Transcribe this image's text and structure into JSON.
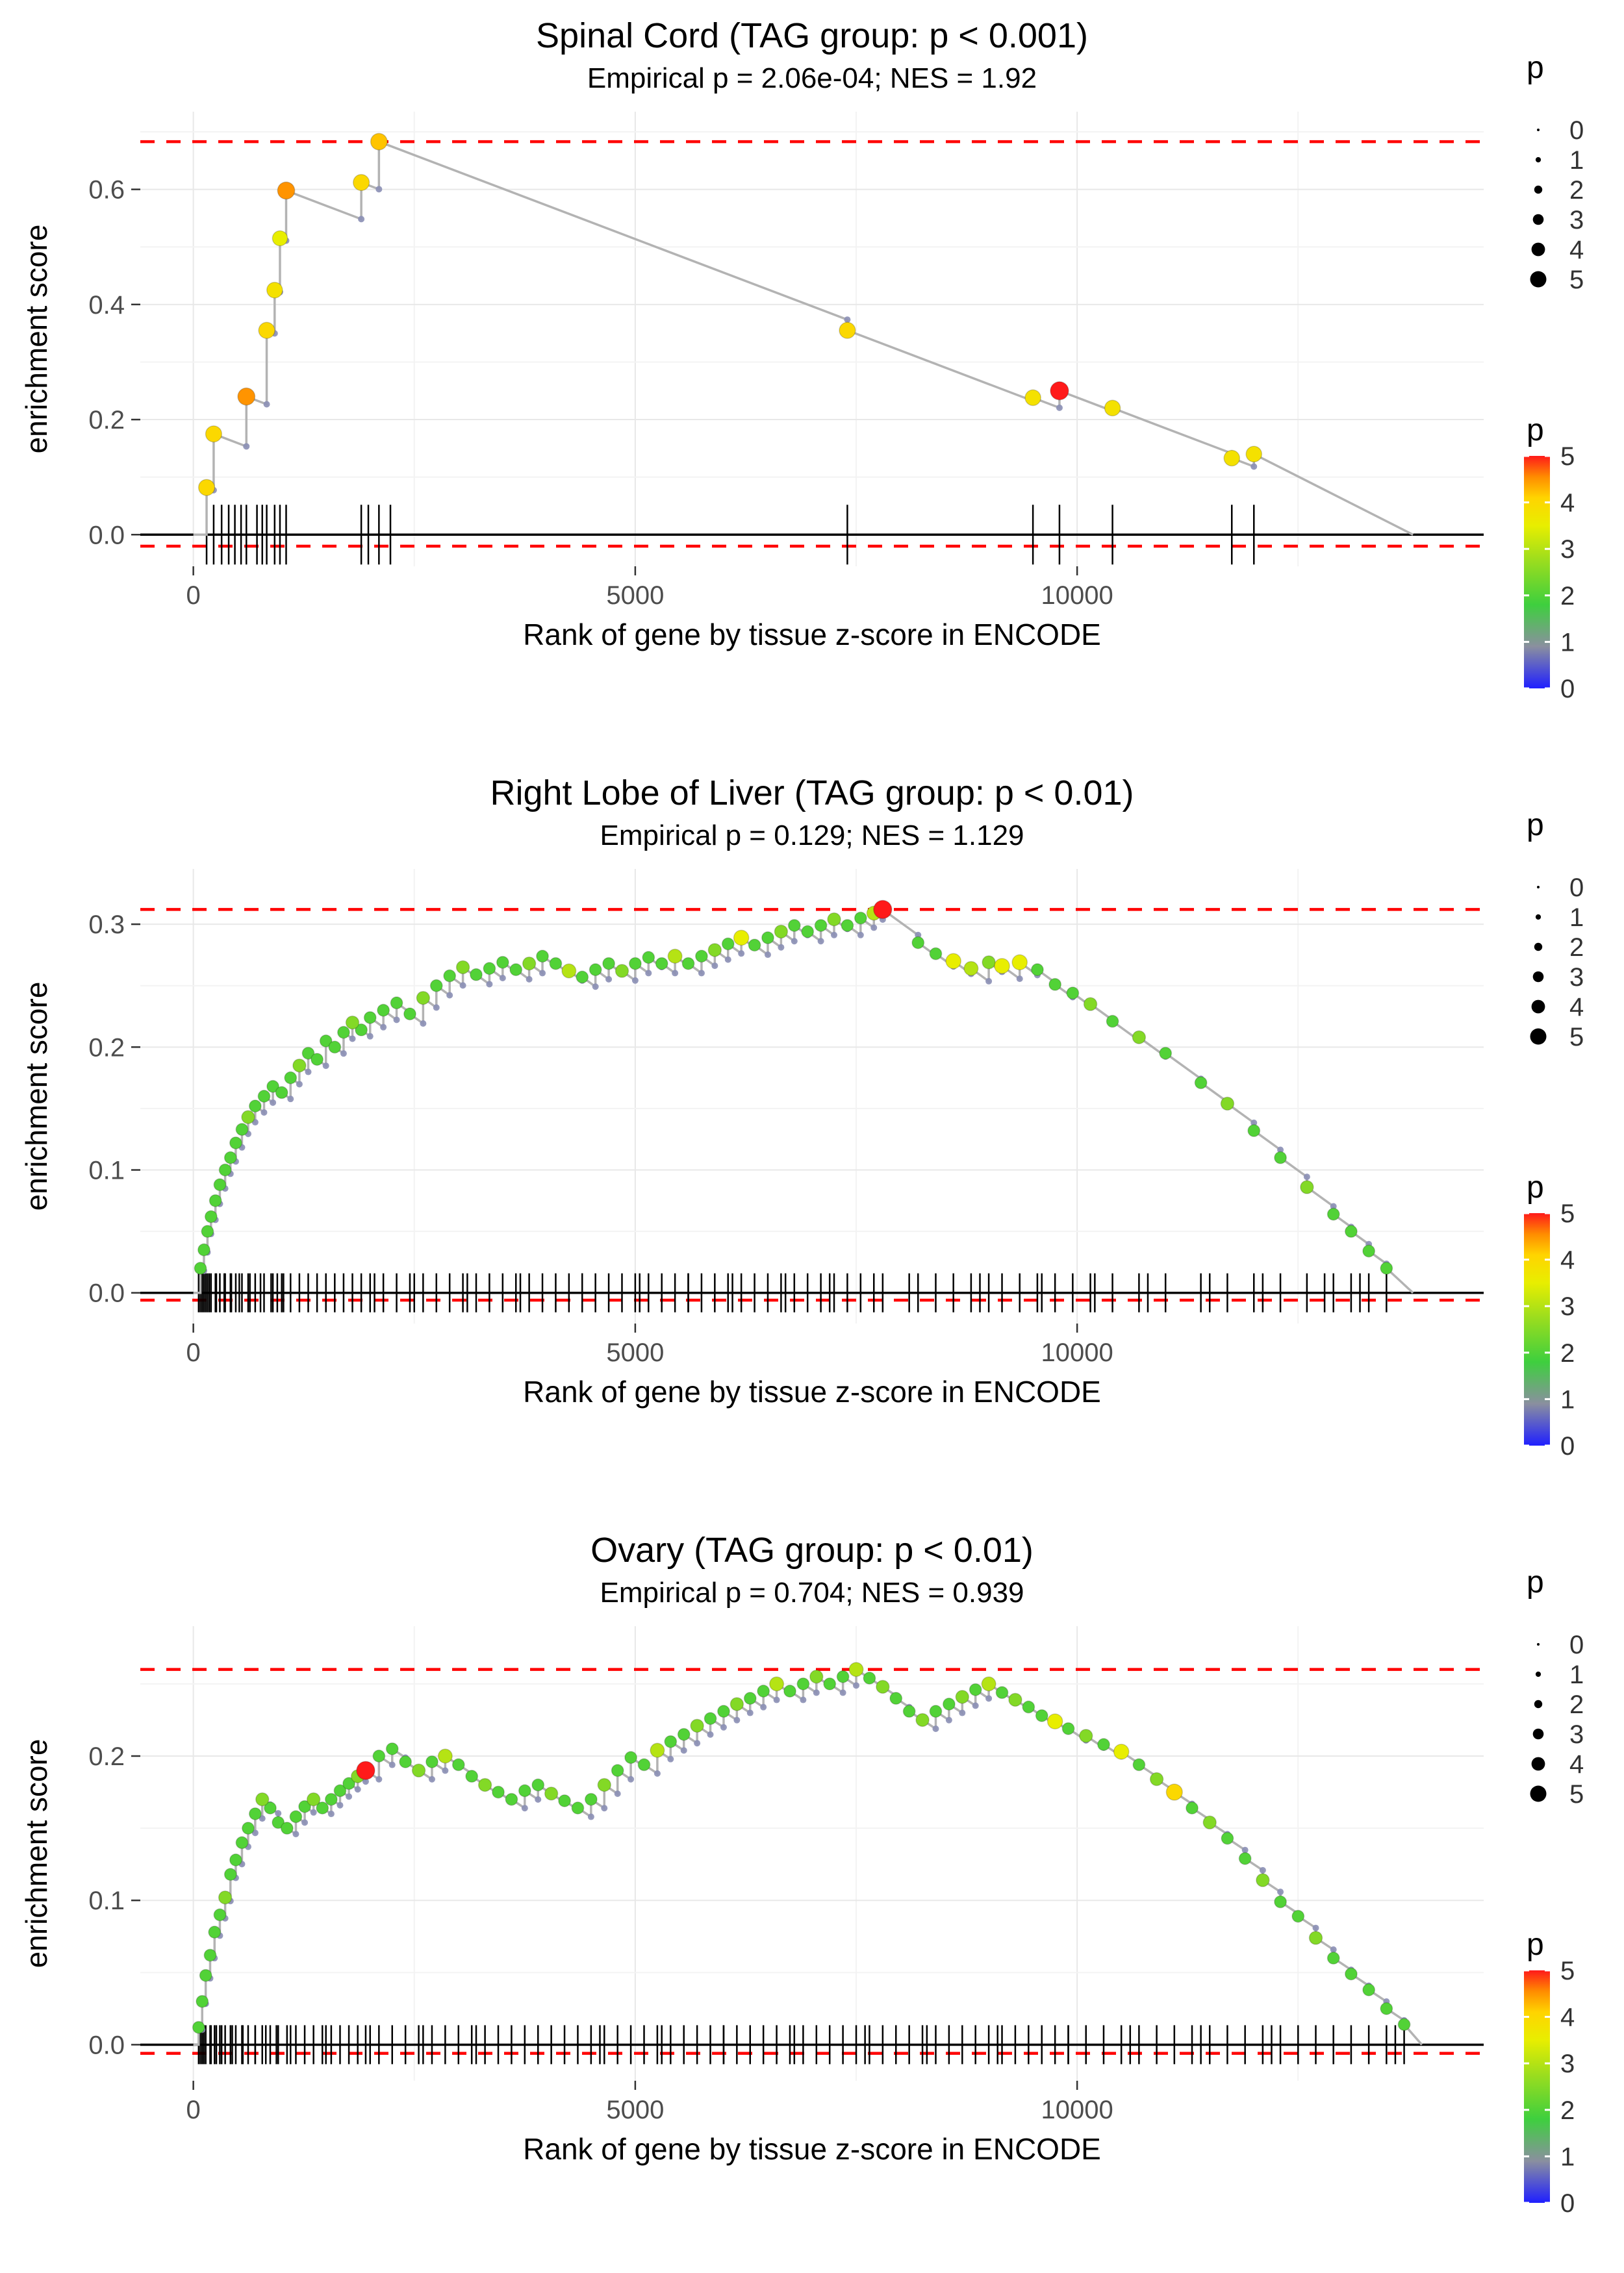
{
  "chart_data": [
    {
      "type": "line",
      "title": "Spinal Cord (TAG group: p < 0.001)",
      "subtitle": "Empirical p = 2.06e-04; NES = 1.92",
      "xlabel": "Rank of gene by tissue z-score in ENCODE",
      "ylabel": "enrichment score",
      "x_ticks": [
        0,
        5000,
        10000
      ],
      "y_ticks": [
        0,
        0.2,
        0.4,
        0.6
      ],
      "y_tick_labels": [
        "0.0",
        "0.2",
        "0.4",
        "0.6"
      ],
      "xlim": [
        -600,
        14600
      ],
      "ylim": [
        -0.055,
        0.735
      ],
      "hline_top": 0.683,
      "hline_bottom": -0.02,
      "x_end": 13800,
      "rug_half": 46,
      "points": [
        [
          150,
          0.082,
          4
        ],
        [
          230,
          0.175,
          4
        ],
        [
          600,
          0.24,
          4.5
        ],
        [
          830,
          0.355,
          4
        ],
        [
          920,
          0.425,
          3.8
        ],
        [
          980,
          0.515,
          3.5
        ],
        [
          1050,
          0.598,
          4.5
        ],
        [
          1900,
          0.612,
          4
        ],
        [
          2100,
          0.683,
          4.2
        ],
        [
          7400,
          0.355,
          4
        ],
        [
          9500,
          0.238,
          3.8
        ],
        [
          9800,
          0.25,
          5
        ],
        [
          10400,
          0.22,
          3.8
        ],
        [
          11750,
          0.133,
          3.8
        ],
        [
          12000,
          0.14,
          3.8
        ]
      ],
      "extra_rug": [
        320,
        400,
        470,
        540,
        720,
        780,
        1980,
        2230
      ]
    },
    {
      "type": "line",
      "title": "Right Lobe of Liver (TAG group: p < 0.01)",
      "subtitle": "Empirical p = 0.129; NES = 1.129",
      "xlabel": "Rank of gene by tissue z-score in ENCODE",
      "ylabel": "enrichment score",
      "x_ticks": [
        0,
        5000,
        10000
      ],
      "y_ticks": [
        0,
        0.1,
        0.2,
        0.3
      ],
      "y_tick_labels": [
        "0.0",
        "0.1",
        "0.2",
        "0.3"
      ],
      "xlim": [
        -600,
        14600
      ],
      "ylim": [
        -0.025,
        0.345
      ],
      "hline_top": 0.312,
      "hline_bottom": -0.006,
      "x_end": 13800,
      "rug_half": 30,
      "points": [
        [
          80,
          0.02,
          2
        ],
        [
          120,
          0.035,
          2
        ],
        [
          160,
          0.05,
          2
        ],
        [
          200,
          0.062,
          2
        ],
        [
          250,
          0.075,
          2
        ],
        [
          300,
          0.088,
          2
        ],
        [
          360,
          0.1,
          2
        ],
        [
          420,
          0.11,
          2
        ],
        [
          480,
          0.122,
          2
        ],
        [
          550,
          0.133,
          2
        ],
        [
          620,
          0.143,
          2.5
        ],
        [
          700,
          0.152,
          2
        ],
        [
          800,
          0.16,
          2
        ],
        [
          900,
          0.168,
          2
        ],
        [
          1000,
          0.163,
          2
        ],
        [
          1100,
          0.175,
          2
        ],
        [
          1200,
          0.185,
          2.5
        ],
        [
          1300,
          0.195,
          2
        ],
        [
          1400,
          0.19,
          2
        ],
        [
          1500,
          0.205,
          2
        ],
        [
          1600,
          0.2,
          2
        ],
        [
          1700,
          0.212,
          2
        ],
        [
          1800,
          0.22,
          2.5
        ],
        [
          1900,
          0.214,
          2
        ],
        [
          2000,
          0.224,
          2
        ],
        [
          2150,
          0.23,
          2
        ],
        [
          2300,
          0.236,
          2
        ],
        [
          2450,
          0.227,
          2
        ],
        [
          2600,
          0.24,
          2.5
        ],
        [
          2750,
          0.25,
          2
        ],
        [
          2900,
          0.258,
          2
        ],
        [
          3050,
          0.265,
          2.5
        ],
        [
          3200,
          0.259,
          2
        ],
        [
          3350,
          0.264,
          2
        ],
        [
          3500,
          0.269,
          2
        ],
        [
          3650,
          0.263,
          2
        ],
        [
          3800,
          0.268,
          2.5
        ],
        [
          3950,
          0.274,
          2
        ],
        [
          4100,
          0.268,
          2
        ],
        [
          4250,
          0.262,
          3
        ],
        [
          4400,
          0.257,
          2
        ],
        [
          4550,
          0.263,
          2
        ],
        [
          4700,
          0.268,
          2
        ],
        [
          4850,
          0.262,
          2.5
        ],
        [
          5000,
          0.268,
          2
        ],
        [
          5150,
          0.273,
          2
        ],
        [
          5300,
          0.268,
          2
        ],
        [
          5450,
          0.274,
          3
        ],
        [
          5600,
          0.268,
          2
        ],
        [
          5750,
          0.274,
          2
        ],
        [
          5900,
          0.279,
          2.5
        ],
        [
          6050,
          0.284,
          2
        ],
        [
          6200,
          0.289,
          3.5
        ],
        [
          6350,
          0.283,
          2
        ],
        [
          6500,
          0.289,
          2
        ],
        [
          6650,
          0.294,
          2.5
        ],
        [
          6800,
          0.299,
          2
        ],
        [
          6950,
          0.294,
          2
        ],
        [
          7100,
          0.299,
          2
        ],
        [
          7250,
          0.304,
          2.5
        ],
        [
          7400,
          0.299,
          2
        ],
        [
          7550,
          0.305,
          2
        ],
        [
          7700,
          0.309,
          3
        ],
        [
          7800,
          0.312,
          5
        ],
        [
          8200,
          0.285,
          2
        ],
        [
          8400,
          0.276,
          2
        ],
        [
          8600,
          0.27,
          3.5
        ],
        [
          8800,
          0.264,
          3
        ],
        [
          9000,
          0.269,
          2.5
        ],
        [
          9150,
          0.266,
          3.5
        ],
        [
          9350,
          0.269,
          3.5
        ],
        [
          9550,
          0.263,
          2
        ],
        [
          9750,
          0.251,
          2
        ],
        [
          9950,
          0.244,
          2
        ],
        [
          10150,
          0.235,
          2.5
        ],
        [
          10400,
          0.221,
          2
        ],
        [
          10700,
          0.208,
          2.5
        ],
        [
          11000,
          0.195,
          2
        ],
        [
          11400,
          0.171,
          2
        ],
        [
          11700,
          0.154,
          2.5
        ],
        [
          12000,
          0.132,
          2
        ],
        [
          12300,
          0.11,
          2
        ],
        [
          12600,
          0.086,
          2.5
        ],
        [
          12900,
          0.064,
          2
        ],
        [
          13100,
          0.05,
          2
        ],
        [
          13300,
          0.034,
          2
        ],
        [
          13500,
          0.02,
          2
        ]
      ],
      "extra_rug": [
        60,
        100,
        140,
        180,
        260,
        350,
        430,
        520,
        640,
        760,
        880,
        950,
        1020,
        2050,
        2500,
        3100,
        3700,
        4400,
        5050,
        5600,
        6100,
        6700,
        7200,
        8100,
        8900,
        9600,
        10200,
        10800,
        11500,
        12100,
        12800,
        13200
      ]
    },
    {
      "type": "line",
      "title": "Ovary (TAG group: p < 0.01)",
      "subtitle": "Empirical p = 0.704; NES = 0.939",
      "xlabel": "Rank of gene by tissue z-score in ENCODE",
      "ylabel": "enrichment score",
      "x_ticks": [
        0,
        5000,
        10000
      ],
      "y_ticks": [
        0,
        0.1,
        0.2
      ],
      "y_tick_labels": [
        "0.0",
        "0.1",
        "0.2"
      ],
      "xlim": [
        -600,
        14600
      ],
      "ylim": [
        -0.025,
        0.29
      ],
      "hline_top": 0.26,
      "hline_bottom": -0.006,
      "x_end": 13900,
      "rug_half": 30,
      "points": [
        [
          60,
          0.012,
          2
        ],
        [
          100,
          0.03,
          2
        ],
        [
          140,
          0.048,
          2
        ],
        [
          190,
          0.062,
          2
        ],
        [
          240,
          0.078,
          2
        ],
        [
          300,
          0.09,
          2
        ],
        [
          360,
          0.102,
          2.5
        ],
        [
          420,
          0.118,
          2
        ],
        [
          480,
          0.128,
          2
        ],
        [
          550,
          0.14,
          2
        ],
        [
          620,
          0.15,
          2
        ],
        [
          700,
          0.16,
          2
        ],
        [
          780,
          0.17,
          2.5
        ],
        [
          870,
          0.164,
          2
        ],
        [
          960,
          0.154,
          2
        ],
        [
          1060,
          0.15,
          2
        ],
        [
          1160,
          0.158,
          2
        ],
        [
          1260,
          0.165,
          2
        ],
        [
          1360,
          0.17,
          2.5
        ],
        [
          1460,
          0.164,
          2
        ],
        [
          1560,
          0.17,
          2
        ],
        [
          1660,
          0.176,
          2
        ],
        [
          1760,
          0.181,
          2
        ],
        [
          1860,
          0.186,
          2.5
        ],
        [
          1950,
          0.19,
          5
        ],
        [
          2100,
          0.2,
          2
        ],
        [
          2250,
          0.205,
          2
        ],
        [
          2400,
          0.196,
          2
        ],
        [
          2550,
          0.19,
          2.5
        ],
        [
          2700,
          0.196,
          2
        ],
        [
          2850,
          0.2,
          3
        ],
        [
          3000,
          0.194,
          2
        ],
        [
          3150,
          0.186,
          2
        ],
        [
          3300,
          0.18,
          2.5
        ],
        [
          3450,
          0.175,
          2
        ],
        [
          3600,
          0.17,
          2
        ],
        [
          3750,
          0.176,
          2
        ],
        [
          3900,
          0.18,
          2
        ],
        [
          4050,
          0.174,
          2.5
        ],
        [
          4200,
          0.169,
          2
        ],
        [
          4350,
          0.164,
          2
        ],
        [
          4500,
          0.17,
          2
        ],
        [
          4650,
          0.18,
          2.5
        ],
        [
          4800,
          0.19,
          2
        ],
        [
          4950,
          0.199,
          2
        ],
        [
          5100,
          0.194,
          2
        ],
        [
          5250,
          0.204,
          3
        ],
        [
          5400,
          0.21,
          2
        ],
        [
          5550,
          0.215,
          2
        ],
        [
          5700,
          0.221,
          2.5
        ],
        [
          5850,
          0.226,
          2
        ],
        [
          6000,
          0.231,
          2
        ],
        [
          6150,
          0.236,
          2.5
        ],
        [
          6300,
          0.24,
          2
        ],
        [
          6450,
          0.245,
          2
        ],
        [
          6600,
          0.25,
          3
        ],
        [
          6750,
          0.245,
          2
        ],
        [
          6900,
          0.25,
          2
        ],
        [
          7050,
          0.255,
          2.5
        ],
        [
          7200,
          0.25,
          2
        ],
        [
          7350,
          0.255,
          2
        ],
        [
          7500,
          0.26,
          3
        ],
        [
          7650,
          0.254,
          2
        ],
        [
          7800,
          0.248,
          2.5
        ],
        [
          7950,
          0.24,
          2
        ],
        [
          8100,
          0.231,
          2
        ],
        [
          8250,
          0.225,
          2.5
        ],
        [
          8400,
          0.231,
          2
        ],
        [
          8550,
          0.236,
          2
        ],
        [
          8700,
          0.241,
          2.5
        ],
        [
          8850,
          0.246,
          2
        ],
        [
          9000,
          0.25,
          3
        ],
        [
          9150,
          0.244,
          2
        ],
        [
          9300,
          0.239,
          2.5
        ],
        [
          9450,
          0.234,
          2
        ],
        [
          9600,
          0.228,
          2
        ],
        [
          9750,
          0.224,
          3.5
        ],
        [
          9900,
          0.219,
          2
        ],
        [
          10100,
          0.214,
          2.5
        ],
        [
          10300,
          0.208,
          2
        ],
        [
          10500,
          0.203,
          3.5
        ],
        [
          10700,
          0.194,
          2
        ],
        [
          10900,
          0.184,
          2.5
        ],
        [
          11100,
          0.175,
          4
        ],
        [
          11300,
          0.164,
          2
        ],
        [
          11500,
          0.154,
          2.5
        ],
        [
          11700,
          0.143,
          2
        ],
        [
          11900,
          0.129,
          2
        ],
        [
          12100,
          0.114,
          2.5
        ],
        [
          12300,
          0.099,
          2
        ],
        [
          12500,
          0.089,
          2
        ],
        [
          12700,
          0.074,
          2.5
        ],
        [
          12900,
          0.06,
          2
        ],
        [
          13100,
          0.049,
          2
        ],
        [
          13300,
          0.038,
          2
        ],
        [
          13500,
          0.025,
          2
        ],
        [
          13700,
          0.014,
          2
        ]
      ],
      "extra_rug": [
        80,
        120,
        200,
        260,
        320,
        440,
        560,
        700,
        820,
        940,
        1100,
        1500,
        2000,
        2600,
        3200,
        3900,
        4600,
        5300,
        6000,
        6800,
        7600,
        8300,
        9100,
        9900,
        10600,
        11400,
        12200,
        12900,
        13600
      ]
    }
  ],
  "legend_size": {
    "title": "p",
    "values": [
      0,
      1,
      2,
      3,
      4,
      5
    ]
  },
  "legend_color": {
    "title": "p",
    "tick_labels": [
      "5",
      "4",
      "3",
      "2",
      "1",
      "0"
    ],
    "stops": [
      [
        0,
        "#1f1fff"
      ],
      [
        0.18,
        "#8a8f9f"
      ],
      [
        0.36,
        "#3ecf3e"
      ],
      [
        0.55,
        "#9bdd1e"
      ],
      [
        0.7,
        "#e8ee00"
      ],
      [
        0.82,
        "#ffd400"
      ],
      [
        0.91,
        "#ff8c00"
      ],
      [
        1,
        "#ff1a1a"
      ]
    ]
  },
  "styles": {
    "curve": "#b3b3b3",
    "dashed_line": "#ff0000",
    "zero_line": "#000000",
    "rug": "#000000",
    "shadow_dot": "#8b8fb5",
    "grid_major": "#e8e8e8",
    "grid_minor": "#f3f3f3",
    "tick_text": "#4d4d4d",
    "axis_tick": "#333333"
  }
}
